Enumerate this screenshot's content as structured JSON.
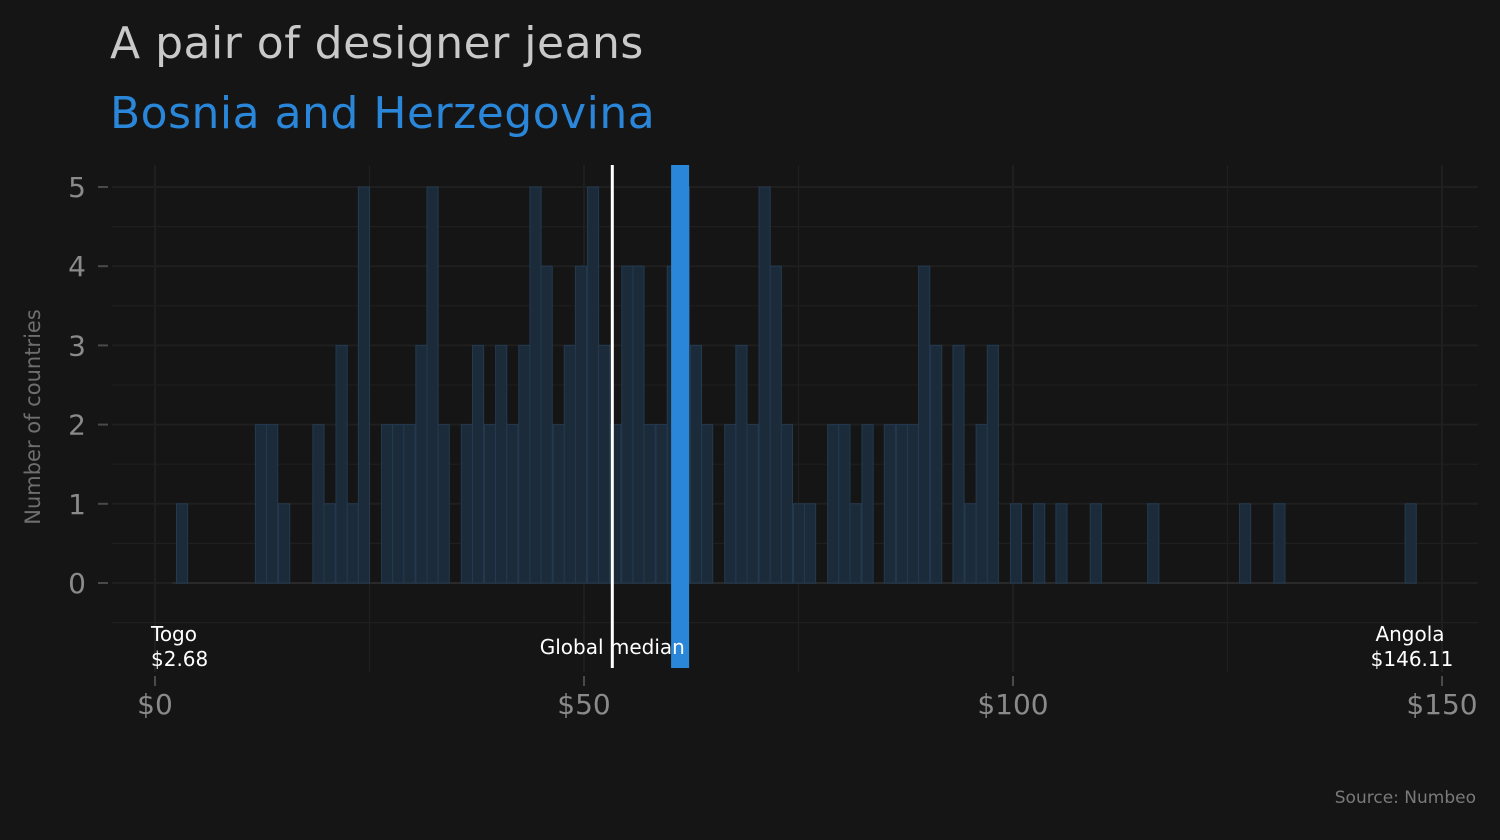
{
  "title": "A pair of designer jeans",
  "subtitle": "Bosnia and Herzegovina",
  "source": "Source: Numbeo",
  "colors": {
    "background": "#151515",
    "bar_fill": "#1b2b3a",
    "bar_stroke": "#233a50",
    "highlight": "#2a86d8",
    "median_line": "#ffffff",
    "grid": "#1f1f1f"
  },
  "chart_data": {
    "type": "bar",
    "ylabel": "Number of countries",
    "xlim": [
      0,
      150
    ],
    "ylim": [
      0,
      5
    ],
    "x_ticks": [
      {
        "value": 0,
        "label": "$0"
      },
      {
        "value": 50,
        "label": "$50"
      },
      {
        "value": 100,
        "label": "$100"
      },
      {
        "value": 150,
        "label": "$150"
      }
    ],
    "y_ticks": [
      {
        "value": 0,
        "label": "0"
      },
      {
        "value": 1,
        "label": "1"
      },
      {
        "value": 2,
        "label": "2"
      },
      {
        "value": 3,
        "label": "3"
      },
      {
        "value": 4,
        "label": "4"
      },
      {
        "value": 5,
        "label": "5"
      }
    ],
    "bins": [
      {
        "x": 2.5,
        "count": 1
      },
      {
        "x": 11.7,
        "count": 2
      },
      {
        "x": 13.0,
        "count": 2
      },
      {
        "x": 14.4,
        "count": 1
      },
      {
        "x": 18.4,
        "count": 2
      },
      {
        "x": 19.7,
        "count": 1
      },
      {
        "x": 21.1,
        "count": 3
      },
      {
        "x": 22.4,
        "count": 1
      },
      {
        "x": 23.7,
        "count": 5
      },
      {
        "x": 26.4,
        "count": 2
      },
      {
        "x": 27.7,
        "count": 2
      },
      {
        "x": 29.0,
        "count": 2
      },
      {
        "x": 30.4,
        "count": 3
      },
      {
        "x": 31.7,
        "count": 5
      },
      {
        "x": 33.0,
        "count": 2
      },
      {
        "x": 35.7,
        "count": 2
      },
      {
        "x": 37.0,
        "count": 3
      },
      {
        "x": 38.4,
        "count": 2
      },
      {
        "x": 39.7,
        "count": 3
      },
      {
        "x": 41.0,
        "count": 2
      },
      {
        "x": 42.4,
        "count": 3
      },
      {
        "x": 43.7,
        "count": 5
      },
      {
        "x": 45.0,
        "count": 4
      },
      {
        "x": 46.4,
        "count": 2
      },
      {
        "x": 47.7,
        "count": 3
      },
      {
        "x": 49.0,
        "count": 4
      },
      {
        "x": 50.4,
        "count": 5
      },
      {
        "x": 51.7,
        "count": 3
      },
      {
        "x": 53.0,
        "count": 2
      },
      {
        "x": 54.4,
        "count": 4
      },
      {
        "x": 55.7,
        "count": 4
      },
      {
        "x": 57.0,
        "count": 2
      },
      {
        "x": 58.4,
        "count": 2
      },
      {
        "x": 59.7,
        "count": 4
      },
      {
        "x": 61.0,
        "count": 5
      },
      {
        "x": 62.4,
        "count": 3
      },
      {
        "x": 63.7,
        "count": 2
      },
      {
        "x": 66.4,
        "count": 2
      },
      {
        "x": 67.7,
        "count": 3
      },
      {
        "x": 69.0,
        "count": 2
      },
      {
        "x": 70.4,
        "count": 5
      },
      {
        "x": 71.7,
        "count": 4
      },
      {
        "x": 73.0,
        "count": 2
      },
      {
        "x": 74.4,
        "count": 1
      },
      {
        "x": 75.7,
        "count": 1
      },
      {
        "x": 78.4,
        "count": 2
      },
      {
        "x": 79.7,
        "count": 2
      },
      {
        "x": 81.0,
        "count": 1
      },
      {
        "x": 82.4,
        "count": 2
      },
      {
        "x": 85.0,
        "count": 2
      },
      {
        "x": 86.4,
        "count": 2
      },
      {
        "x": 87.7,
        "count": 2
      },
      {
        "x": 89.0,
        "count": 4
      },
      {
        "x": 90.4,
        "count": 3
      },
      {
        "x": 93.0,
        "count": 3
      },
      {
        "x": 94.4,
        "count": 1
      },
      {
        "x": 95.7,
        "count": 2
      },
      {
        "x": 97.0,
        "count": 3
      },
      {
        "x": 99.7,
        "count": 1
      },
      {
        "x": 102.4,
        "count": 1
      },
      {
        "x": 105.0,
        "count": 1
      },
      {
        "x": 109.0,
        "count": 1
      },
      {
        "x": 115.7,
        "count": 1
      },
      {
        "x": 126.4,
        "count": 1
      },
      {
        "x": 130.4,
        "count": 1
      },
      {
        "x": 145.7,
        "count": 1
      }
    ],
    "global_median": {
      "value": 53.3,
      "label": "Global median"
    },
    "highlight": {
      "value": 61.2,
      "country": "Bosnia and Herzegovina"
    },
    "annotations": [
      {
        "country": "Togo",
        "value_label": "$2.68",
        "value": 2.68
      },
      {
        "country": "Angola",
        "value_label": "$146.11",
        "value": 146.11
      }
    ]
  }
}
